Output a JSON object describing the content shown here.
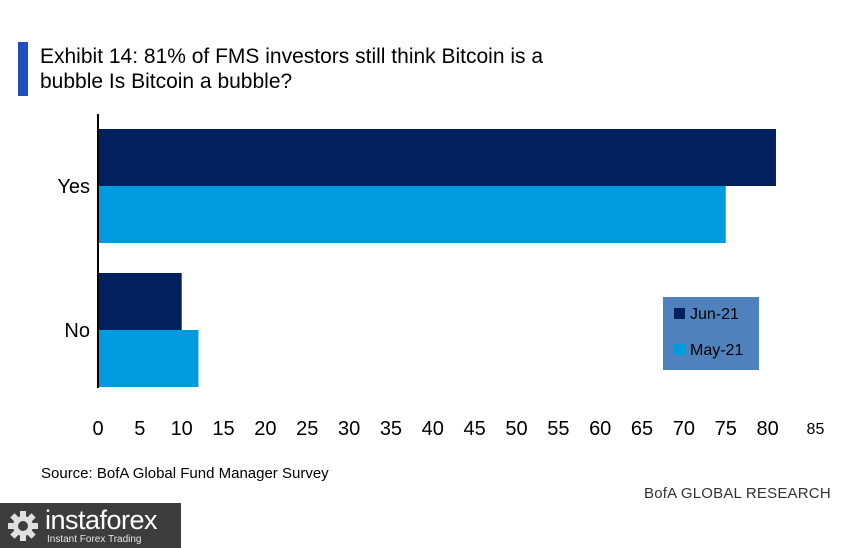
{
  "title": "Exhibit 14: 81% of FMS investors still think Bitcoin is a bubble Is Bitcoin a bubble?",
  "source": "Source: BofA Global Fund Manager Survey",
  "credit": "BofA GLOBAL RESEARCH",
  "watermark": {
    "name": "instaforex",
    "tagline": "Instant Forex Trading",
    "icon": "gear-icon"
  },
  "colors": {
    "jun": "#021f5e",
    "may": "#009ade",
    "legend_bg": "#4f81bd",
    "title_accent": "#1f4fbf"
  },
  "chart_data": {
    "type": "bar",
    "orientation": "horizontal",
    "categories": [
      "Yes",
      "No"
    ],
    "series": [
      {
        "name": "Jun-21",
        "values": [
          81,
          10
        ]
      },
      {
        "name": "May-21",
        "values": [
          75,
          12
        ]
      }
    ],
    "xlim": [
      0,
      85
    ],
    "xticks": [
      "0",
      "5",
      "10",
      "15",
      "20",
      "25",
      "30",
      "35",
      "40",
      "45",
      "50",
      "55",
      "60",
      "65",
      "70",
      "75",
      "80",
      "85"
    ],
    "legend": {
      "placement": "right",
      "items": [
        "Jun-21",
        "May-21"
      ]
    },
    "grid": false
  }
}
